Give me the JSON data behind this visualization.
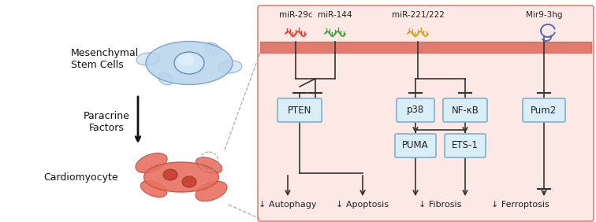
{
  "bg_color": "#ffffff",
  "panel_bg": "#fce8e4",
  "panel_border_color": "#d07060",
  "membrane_color": "#d96050",
  "mir_labels": [
    "miR-29c",
    "miR-144",
    "miR-221/222",
    "Mir9-3hg"
  ],
  "mir_colors": [
    "#e04030",
    "#40a040",
    "#d4a020",
    "#5060b0"
  ],
  "box_color": "#daeef8",
  "box_border": "#80b0d0",
  "outcome_labels": [
    "↓ Autophagy",
    "↓ Apoptosis",
    "↓ Fibrosis",
    "↓ Ferroptosis"
  ]
}
